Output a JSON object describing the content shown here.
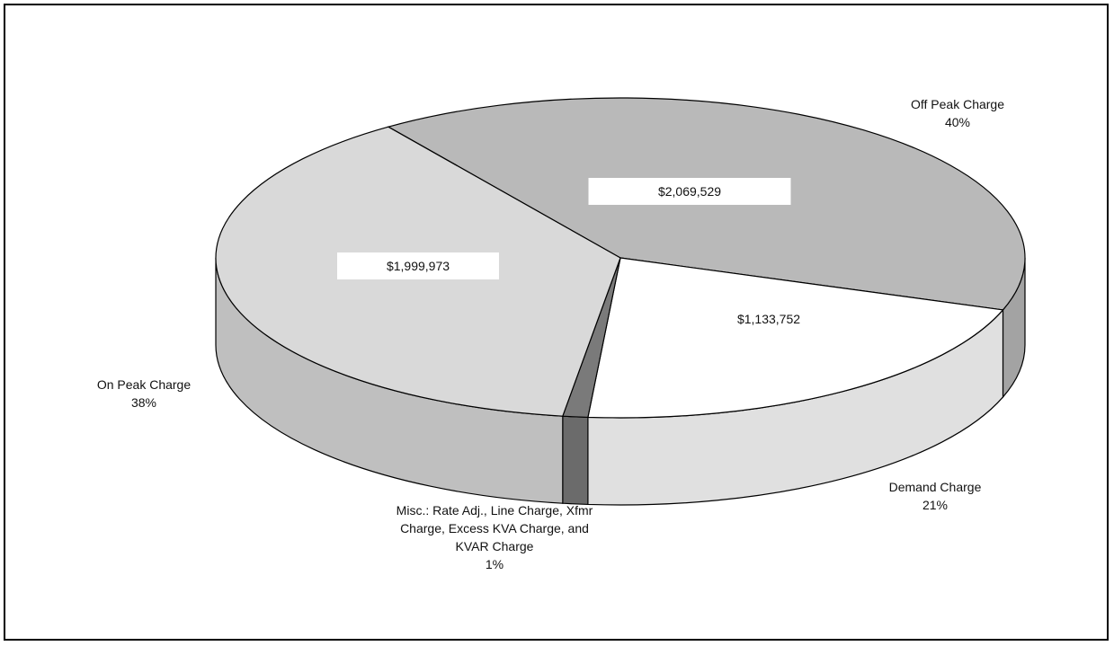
{
  "chart_data": {
    "type": "pie3d",
    "categories": [
      "Off Peak Charge",
      "Demand Charge",
      "Misc.: Rate Adj., Line Charge, Xfmr Charge, Excess KVA Charge, and KVAR Charge",
      "On Peak Charge"
    ],
    "values": [
      40,
      21,
      1,
      38
    ],
    "value_labels": [
      "40%",
      "21%",
      "1%",
      "38%"
    ],
    "amount_labels": [
      "$2,069,529",
      "$1,133,752",
      null,
      "$1,999,973"
    ],
    "colors": [
      "#b9b9b9",
      "#ffffff",
      "#7a7a7a",
      "#d9d9d9"
    ]
  }
}
